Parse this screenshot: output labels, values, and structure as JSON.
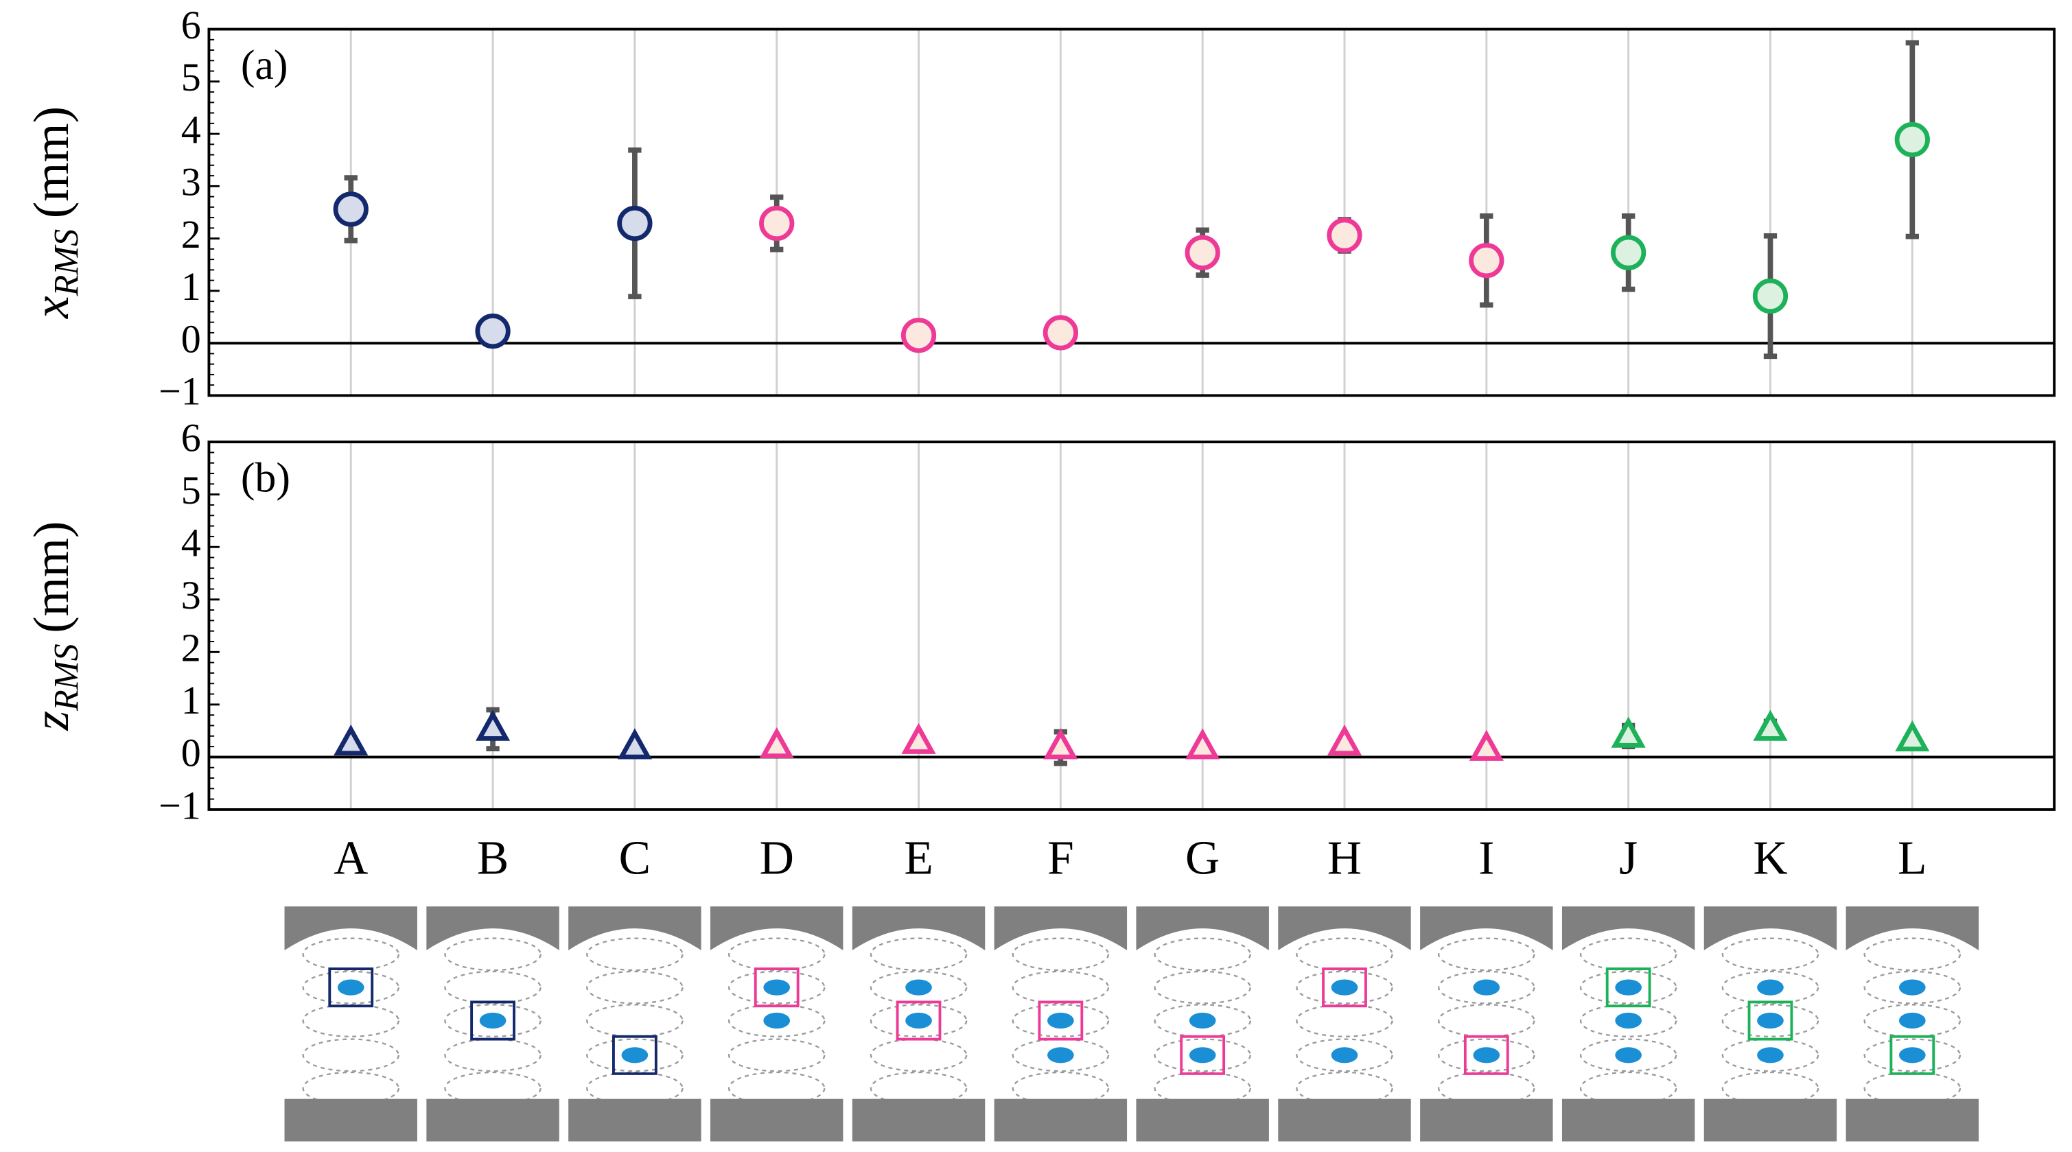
{
  "chart_data": [
    {
      "type": "scatter",
      "panel_label": "(a)",
      "y_label": {
        "symbol": "x",
        "subscript": "RMS",
        "unit": "(mm)"
      },
      "marker": "circle",
      "values": [
        2.56,
        0.23,
        2.29,
        2.29,
        0.15,
        0.2,
        1.73,
        2.06,
        1.58,
        1.73,
        0.9,
        3.89
      ],
      "errors": [
        0.6,
        0,
        1.4,
        0.5,
        0,
        0,
        0.43,
        0.3,
        0.85,
        0.7,
        1.15,
        1.85
      ],
      "colors": [
        "#13296b",
        "#13296b",
        "#13296b",
        "#ee3a96",
        "#ee3a96",
        "#ee3a96",
        "#ee3a96",
        "#ee3a96",
        "#ee3a96",
        "#1db25a",
        "#1db25a",
        "#1db25a"
      ],
      "fills": [
        "#d6dcec",
        "#d6dcec",
        "#d6dcec",
        "#fbe8df",
        "#fbe8df",
        "#fbe8df",
        "#fbe8df",
        "#fbe8df",
        "#fbe8df",
        "#dcf1df",
        "#dcf1df",
        "#dcf1df"
      ],
      "ylim": [
        -1,
        6
      ],
      "yticks": [
        {
          "value": -1,
          "label": "−1"
        },
        0,
        1,
        2,
        3,
        4,
        5,
        6
      ]
    },
    {
      "type": "scatter",
      "panel_label": "(b)",
      "y_label": {
        "symbol": "z",
        "subscript": "RMS",
        "unit": "(mm)"
      },
      "marker": "triangle",
      "categories": [
        "A",
        "B",
        "C",
        "D",
        "E",
        "F",
        "G",
        "H",
        "I",
        "J",
        "K",
        "L"
      ],
      "values": [
        0.25,
        0.53,
        0.18,
        0.2,
        0.28,
        0.18,
        0.18,
        0.25,
        0.15,
        0.4,
        0.53,
        0.33
      ],
      "errors": [
        0,
        0.37,
        0,
        0,
        0,
        0.3,
        0,
        0,
        0,
        0.2,
        0.15,
        0
      ],
      "colors": [
        "#13296b",
        "#13296b",
        "#13296b",
        "#ee3a96",
        "#ee3a96",
        "#ee3a96",
        "#ee3a96",
        "#ee3a96",
        "#ee3a96",
        "#1db25a",
        "#1db25a",
        "#1db25a"
      ],
      "fills": [
        "#d6dcec",
        "#d6dcec",
        "#d6dcec",
        "#fbe8df",
        "#fbe8df",
        "#fbe8df",
        "#fbe8df",
        "#fbe8df",
        "#fbe8df",
        "#dcf1df",
        "#dcf1df",
        "#dcf1df"
      ],
      "ylim": [
        -1,
        6
      ],
      "yticks": [
        {
          "value": -1,
          "label": "−1"
        },
        0,
        1,
        2,
        3,
        4,
        5,
        6
      ]
    }
  ]
}
